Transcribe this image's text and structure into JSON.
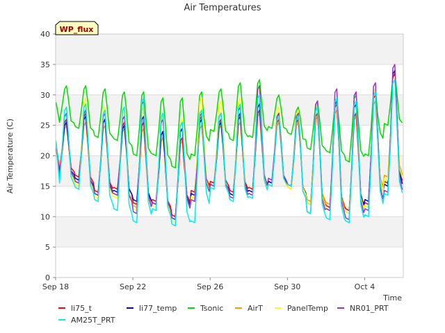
{
  "chart_data": {
    "type": "line",
    "title": "Air Temperatures",
    "xlabel": "Time",
    "ylabel": "Air Temperature (C)",
    "badge": "WP_flux",
    "ylim": [
      0,
      40
    ],
    "yticks": [
      0,
      5,
      10,
      15,
      20,
      25,
      30,
      35,
      40
    ],
    "xlim": [
      "2023-09-18",
      "2023-10-06"
    ],
    "xticks": [
      {
        "label": "Sep 18",
        "date": "2023-09-18"
      },
      {
        "label": "Sep 22",
        "date": "2023-09-22"
      },
      {
        "label": "Sep 26",
        "date": "2023-09-26"
      },
      {
        "label": "Sep 30",
        "date": "2023-09-30"
      },
      {
        "label": "Oct 4",
        "date": "2023-10-04"
      }
    ],
    "grid": true,
    "legend_position": "bottom",
    "daily_extremes": {
      "days": [
        "2023-09-18",
        "2023-09-19",
        "2023-09-20",
        "2023-09-21",
        "2023-09-22",
        "2023-09-23",
        "2023-09-24",
        "2023-09-25",
        "2023-09-26",
        "2023-09-27",
        "2023-09-28",
        "2023-09-29",
        "2023-09-30",
        "2023-10-01",
        "2023-10-02",
        "2023-10-03",
        "2023-10-04",
        "2023-10-05"
      ],
      "note": "approximate daily max and min per series read from the figure"
    },
    "series": [
      {
        "name": "li75_t",
        "color": "#ff0000",
        "max": [
          26.0,
          27.0,
          26.0,
          25.5,
          25.5,
          24.0,
          23.0,
          26.5,
          26.0,
          26.5,
          27.5,
          26.0,
          26.0,
          27.0,
          28.5,
          27.0,
          30.0,
          33.5
        ],
        "min": [
          17.5,
          16.5,
          14.0,
          14.5,
          12.0,
          12.5,
          10.0,
          14.0,
          15.5,
          14.0,
          14.5,
          15.5,
          15.0,
          12.0,
          11.5,
          11.0,
          12.0,
          15.5
        ]
      },
      {
        "name": "li77_temp",
        "color": "#0000cc",
        "max": [
          25.5,
          26.5,
          26.0,
          25.0,
          26.5,
          24.0,
          24.5,
          26.0,
          25.5,
          27.0,
          28.5,
          27.0,
          26.5,
          28.5,
          29.0,
          28.5,
          31.0,
          34.0
        ],
        "min": [
          17.0,
          16.0,
          13.5,
          14.0,
          12.5,
          12.0,
          9.5,
          13.5,
          15.0,
          13.5,
          14.0,
          15.5,
          15.0,
          12.0,
          11.0,
          10.5,
          12.5,
          15.0
        ]
      },
      {
        "name": "Tsonic",
        "color": "#00dd00",
        "max": [
          31.5,
          31.5,
          31.0,
          30.5,
          30.5,
          29.5,
          29.5,
          30.5,
          31.0,
          32.0,
          32.5,
          30.0,
          28.0,
          29.0,
          29.0,
          30.0,
          31.0,
          33.5
        ],
        "min": [
          25.5,
          24.5,
          23.0,
          22.5,
          20.0,
          20.0,
          18.0,
          20.0,
          24.0,
          22.5,
          23.0,
          24.5,
          23.5,
          21.0,
          20.5,
          19.0,
          20.0,
          25.0
        ]
      },
      {
        "name": "AirT",
        "color": "#ff9900",
        "max": [
          25.0,
          25.5,
          25.0,
          24.5,
          24.5,
          23.0,
          22.5,
          25.0,
          25.0,
          25.5,
          27.0,
          25.5,
          25.5,
          26.5,
          27.5,
          26.5,
          29.0,
          33.0
        ],
        "min": [
          16.5,
          15.5,
          13.5,
          13.5,
          11.5,
          12.0,
          10.0,
          13.5,
          15.0,
          13.5,
          14.0,
          15.5,
          14.5,
          12.5,
          12.0,
          11.0,
          12.5,
          16.5
        ]
      },
      {
        "name": "PanelTemp",
        "color": "#ffff00",
        "max": [
          28.0,
          29.5,
          28.0,
          27.5,
          28.0,
          26.5,
          26.0,
          29.5,
          29.0,
          29.5,
          31.0,
          28.0,
          27.5,
          28.5,
          29.5,
          29.0,
          31.0,
          33.0
        ],
        "min": [
          16.0,
          15.0,
          13.0,
          13.0,
          11.0,
          11.5,
          9.0,
          13.0,
          15.0,
          13.0,
          13.5,
          15.0,
          14.5,
          12.0,
          11.0,
          10.5,
          11.5,
          16.0
        ]
      },
      {
        "name": "NR01_PRT",
        "color": "#9933cc",
        "max": [
          27.0,
          27.5,
          27.0,
          26.5,
          29.0,
          26.0,
          25.5,
          27.0,
          27.0,
          28.0,
          31.5,
          27.0,
          27.0,
          29.0,
          31.0,
          30.5,
          32.0,
          35.0
        ],
        "min": [
          16.5,
          15.5,
          13.5,
          13.5,
          10.5,
          12.0,
          9.5,
          12.5,
          15.0,
          13.0,
          13.5,
          16.0,
          15.0,
          10.5,
          11.0,
          9.5,
          11.0,
          14.0
        ]
      },
      {
        "name": "AM25T_PRT",
        "color": "#00eeee",
        "max": [
          28.0,
          28.5,
          27.5,
          28.0,
          29.5,
          27.0,
          25.5,
          27.5,
          27.0,
          28.5,
          30.0,
          26.5,
          26.5,
          28.0,
          29.5,
          29.0,
          30.5,
          32.5
        ],
        "min": [
          15.5,
          14.5,
          12.5,
          11.0,
          9.0,
          11.0,
          8.5,
          9.0,
          14.5,
          12.5,
          13.0,
          15.0,
          15.0,
          10.5,
          9.5,
          9.0,
          10.0,
          13.5
        ]
      }
    ]
  }
}
